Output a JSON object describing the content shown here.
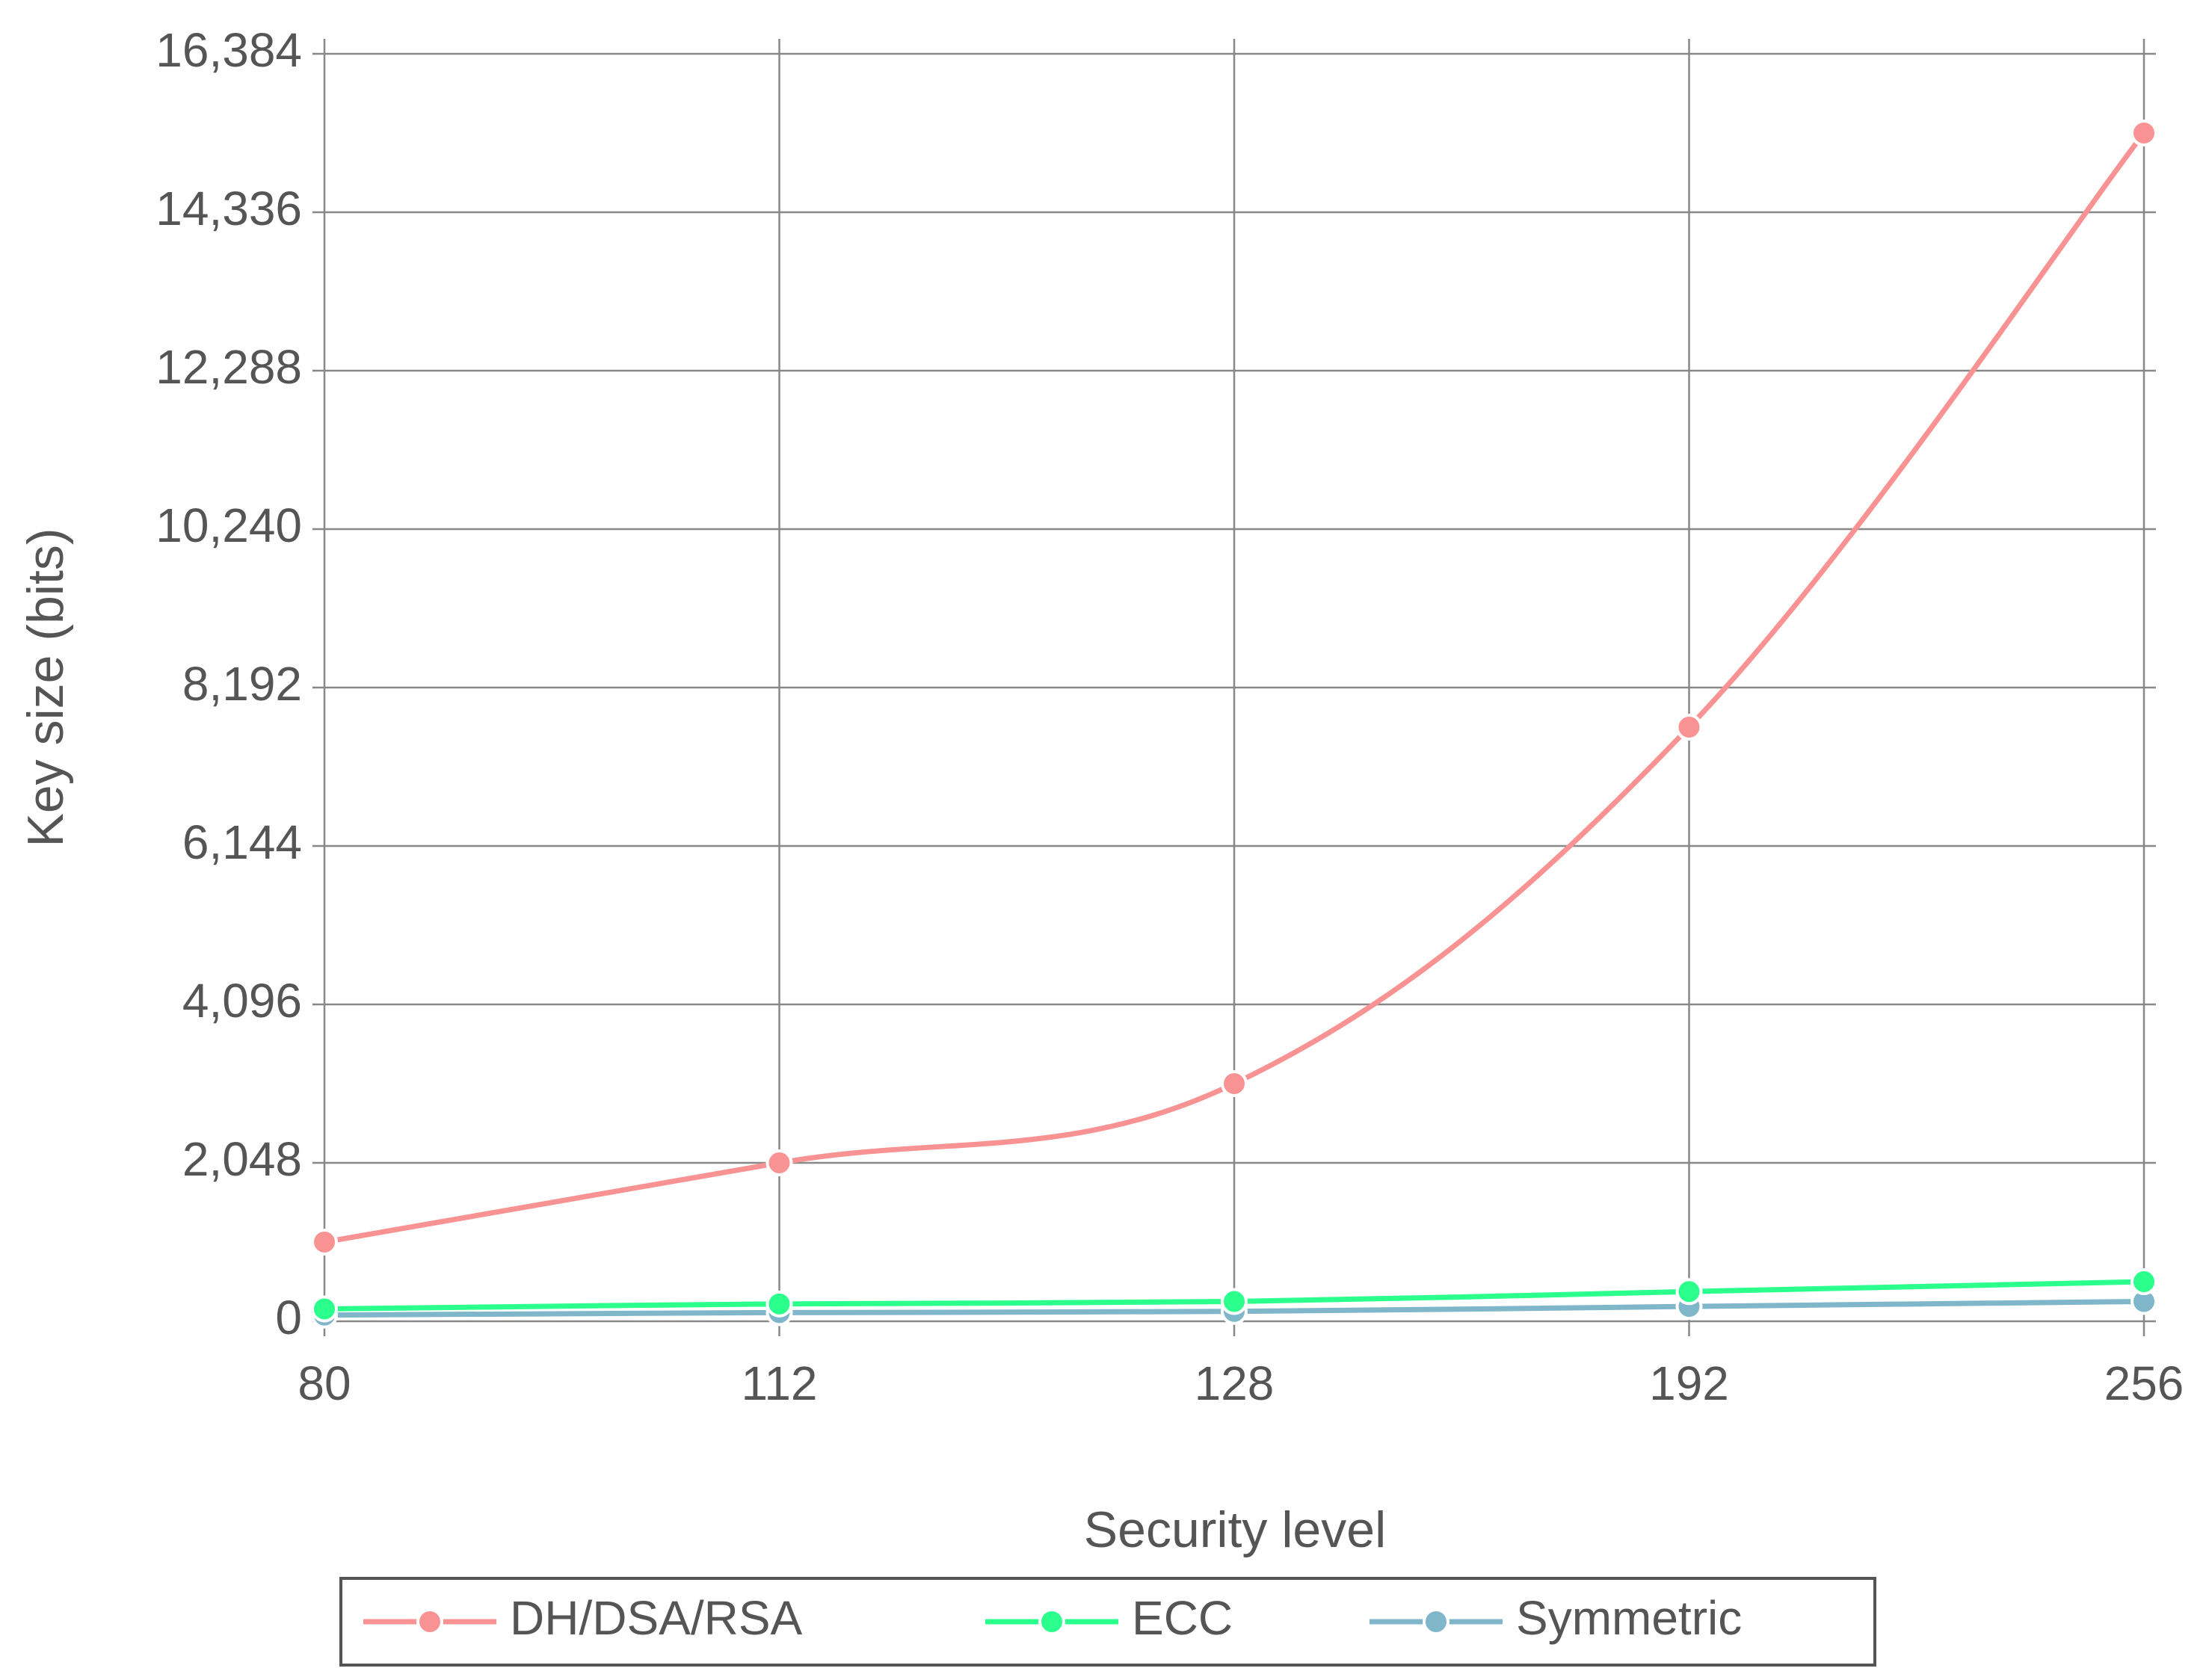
{
  "chart_data": {
    "type": "line",
    "categories": [
      "80",
      "112",
      "128",
      "192",
      "256"
    ],
    "xlabel": "Security level",
    "ylabel": "Key size (bits)",
    "ylim": [
      0,
      16384
    ],
    "yticks": [
      0,
      2048,
      4096,
      6144,
      8192,
      10240,
      12288,
      14336,
      16384
    ],
    "ytick_labels": [
      "0",
      "2,048",
      "4,096",
      "6,144",
      "8,192",
      "10,240",
      "12,288",
      "14,336",
      "16,384"
    ],
    "grid": true,
    "legend_position": "bottom",
    "series": [
      {
        "name": "DH/DSA/RSA",
        "color": "#f99393",
        "values": [
          1024,
          2048,
          3072,
          7680,
          15360
        ]
      },
      {
        "name": "ECC",
        "color": "#2bff8c",
        "values": [
          160,
          224,
          256,
          384,
          512
        ]
      },
      {
        "name": "Symmetric",
        "color": "#7fb6c9",
        "values": [
          80,
          112,
          128,
          192,
          256
        ]
      }
    ]
  }
}
